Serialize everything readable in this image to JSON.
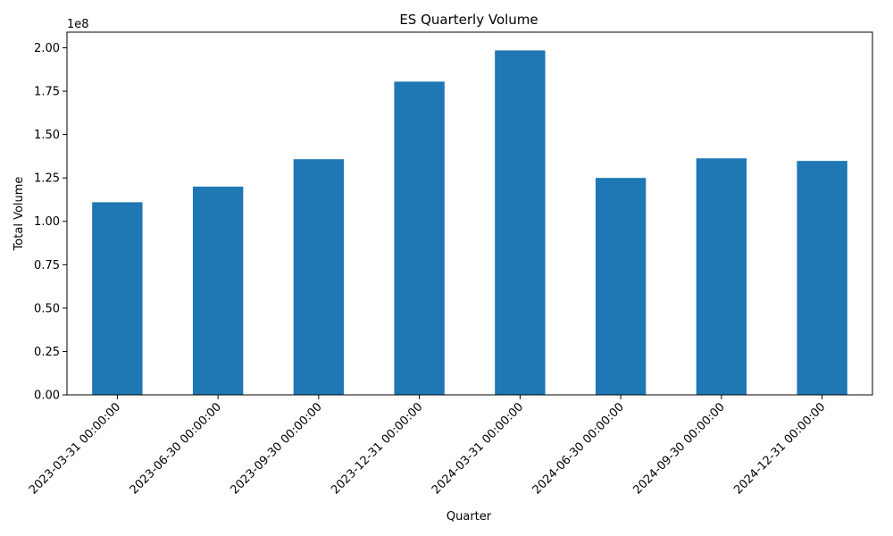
{
  "chart_data": {
    "type": "bar",
    "title": "ES Quarterly Volume",
    "xlabel": "Quarter",
    "ylabel": "Total Volume",
    "y_offset_label": "1e8",
    "categories": [
      "2023-03-31 00:00:00",
      "2023-06-30 00:00:00",
      "2023-09-30 00:00:00",
      "2023-12-31 00:00:00",
      "2024-03-31 00:00:00",
      "2024-06-30 00:00:00",
      "2024-09-30 00:00:00",
      "2024-12-31 00:00:00"
    ],
    "values": [
      111000000,
      120000000,
      135800000,
      180500000,
      198500000,
      125000000,
      136300000,
      134800000
    ],
    "y_scale": 100000000,
    "ylim": [
      0,
      2.09
    ],
    "yticks": [
      "0.00",
      "0.25",
      "0.50",
      "0.75",
      "1.00",
      "1.25",
      "1.50",
      "1.75",
      "2.00"
    ],
    "grid": false,
    "legend": "none",
    "bar_color": "#1f77b4"
  }
}
